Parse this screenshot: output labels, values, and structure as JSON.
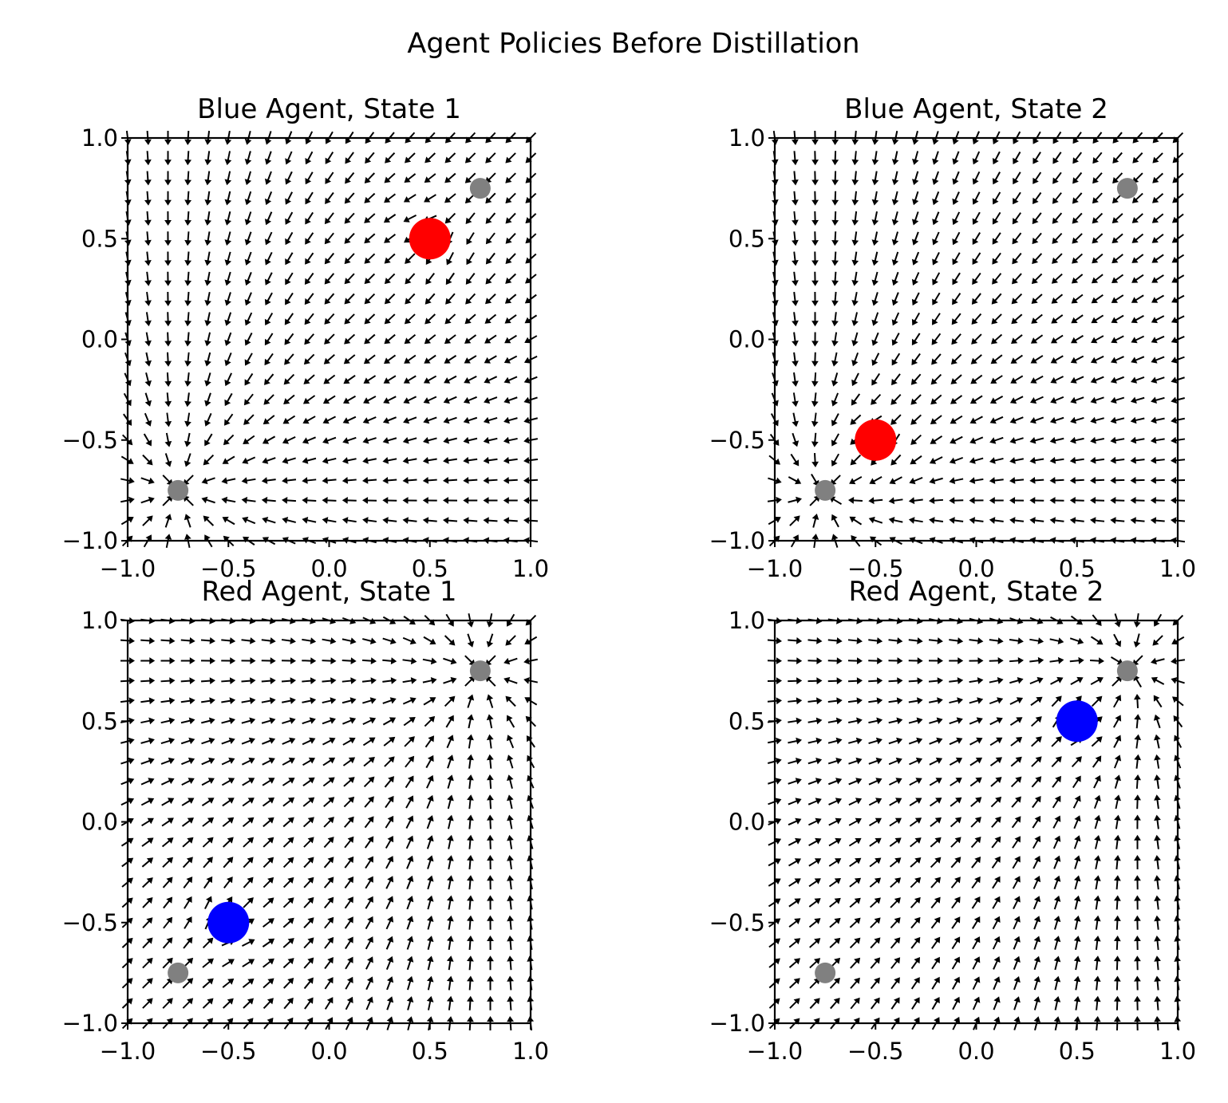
{
  "figure": {
    "suptitle": "Agent Policies Before Distillation"
  },
  "chart_data": [
    {
      "type": "quiver",
      "title": "Blue Agent, State 1",
      "xlim": [
        -1.0,
        1.0
      ],
      "ylim": [
        -1.0,
        1.0
      ],
      "x_ticks": [
        "−1.0",
        "−0.5",
        "0.0",
        "0.5",
        "1.0"
      ],
      "y_ticks": [
        "−1.0",
        "−0.5",
        "0.0",
        "0.5",
        "1.0"
      ],
      "grid": false,
      "field": {
        "grid_range": [
          -1.0,
          1.0
        ],
        "grid_count": 21,
        "converges_to": [
          -0.75,
          -0.75
        ],
        "bend_away_from": [
          0.5,
          0.5
        ]
      },
      "markers": [
        {
          "role": "goal",
          "x": -0.75,
          "y": -0.75,
          "color": "#808080",
          "size": "small"
        },
        {
          "role": "goal",
          "x": 0.75,
          "y": 0.75,
          "color": "#808080",
          "size": "small"
        },
        {
          "role": "other-agent",
          "x": 0.5,
          "y": 0.5,
          "color": "#ff0000",
          "size": "large"
        }
      ]
    },
    {
      "type": "quiver",
      "title": "Blue Agent, State 2",
      "xlim": [
        -1.0,
        1.0
      ],
      "ylim": [
        -1.0,
        1.0
      ],
      "x_ticks": [
        "−1.0",
        "−0.5",
        "0.0",
        "0.5",
        "1.0"
      ],
      "y_ticks": [
        "−1.0",
        "−0.5",
        "0.0",
        "0.5",
        "1.0"
      ],
      "grid": false,
      "field": {
        "grid_range": [
          -1.0,
          1.0
        ],
        "grid_count": 21,
        "converges_to": [
          -0.75,
          -0.75
        ],
        "bend_away_from": [
          -0.5,
          -0.5
        ]
      },
      "markers": [
        {
          "role": "goal",
          "x": -0.75,
          "y": -0.75,
          "color": "#808080",
          "size": "small"
        },
        {
          "role": "goal",
          "x": 0.75,
          "y": 0.75,
          "color": "#808080",
          "size": "small"
        },
        {
          "role": "other-agent",
          "x": -0.5,
          "y": -0.5,
          "color": "#ff0000",
          "size": "large"
        }
      ]
    },
    {
      "type": "quiver",
      "title": "Red Agent, State 1",
      "xlim": [
        -1.0,
        1.0
      ],
      "ylim": [
        -1.0,
        1.0
      ],
      "x_ticks": [
        "−1.0",
        "−0.5",
        "0.0",
        "0.5",
        "1.0"
      ],
      "y_ticks": [
        "−1.0",
        "−0.5",
        "0.0",
        "0.5",
        "1.0"
      ],
      "grid": false,
      "field": {
        "grid_range": [
          -1.0,
          1.0
        ],
        "grid_count": 21,
        "converges_to": [
          0.75,
          0.75
        ],
        "bend_away_from": [
          -0.5,
          -0.5
        ]
      },
      "markers": [
        {
          "role": "goal",
          "x": -0.75,
          "y": -0.75,
          "color": "#808080",
          "size": "small"
        },
        {
          "role": "goal",
          "x": 0.75,
          "y": 0.75,
          "color": "#808080",
          "size": "small"
        },
        {
          "role": "other-agent",
          "x": -0.5,
          "y": -0.5,
          "color": "#0000ff",
          "size": "large"
        }
      ]
    },
    {
      "type": "quiver",
      "title": "Red Agent, State 2",
      "xlim": [
        -1.0,
        1.0
      ],
      "ylim": [
        -1.0,
        1.0
      ],
      "x_ticks": [
        "−1.0",
        "−0.5",
        "0.0",
        "0.5",
        "1.0"
      ],
      "y_ticks": [
        "−1.0",
        "−0.5",
        "0.0",
        "0.5",
        "1.0"
      ],
      "grid": false,
      "field": {
        "grid_range": [
          -1.0,
          1.0
        ],
        "grid_count": 21,
        "converges_to": [
          0.75,
          0.75
        ],
        "bend_away_from": [
          0.5,
          0.5
        ]
      },
      "markers": [
        {
          "role": "goal",
          "x": -0.75,
          "y": -0.75,
          "color": "#808080",
          "size": "small"
        },
        {
          "role": "goal",
          "x": 0.75,
          "y": 0.75,
          "color": "#808080",
          "size": "small"
        },
        {
          "role": "other-agent",
          "x": 0.5,
          "y": 0.5,
          "color": "#0000ff",
          "size": "large"
        }
      ]
    }
  ]
}
